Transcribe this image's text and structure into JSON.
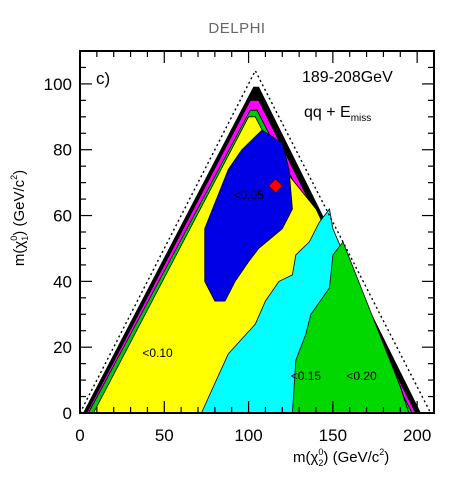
{
  "header": {
    "label": "DELPHI"
  },
  "chart_data": {
    "type": "contour",
    "panel_label": "c)",
    "energy_label": "189-208GeV",
    "channel_label": "qq + E",
    "channel_sub": "miss",
    "xlabel_main": "m(χ",
    "xlabel_sub": "2",
    "xlabel_sup": "0",
    "xlabel_units": ") (GeV/c",
    "xlabel_pow": "2",
    "xlabel_close": ")",
    "ylabel_main": "m(χ",
    "ylabel_sub": "1",
    "ylabel_sup": "0",
    "ylabel_units": ") (GeV/c",
    "ylabel_pow": "2",
    "ylabel_close": ")",
    "xlim": [
      0,
      210
    ],
    "ylim": [
      0,
      110
    ],
    "x_ticks": [
      0,
      50,
      100,
      150,
      200
    ],
    "y_ticks": [
      0,
      20,
      40,
      60,
      80,
      100
    ],
    "x_minor_step": 10,
    "y_minor_step": 5,
    "kinematic_boundary": [
      [
        0,
        0
      ],
      [
        104,
        104
      ],
      [
        208,
        0
      ]
    ],
    "colors": {
      "outer": "#000000",
      "edge_band": "#ff00ff",
      "band_green_outer": "#00c800",
      "region_010": "#ffff00",
      "region_015": "#00ffff",
      "region_020": "#00d800",
      "region_005": "#0000e6",
      "marker": "#ff0000"
    },
    "regions": [
      {
        "name": "outer",
        "color": "outer",
        "points": [
          [
            2,
            0
          ],
          [
            103,
            99
          ],
          [
            106,
            99
          ],
          [
            202,
            0
          ]
        ]
      },
      {
        "name": "edge-band",
        "color": "edge_band",
        "points": [
          [
            4,
            0
          ],
          [
            101,
            95
          ],
          [
            106,
            95
          ],
          [
            199,
            0
          ]
        ]
      },
      {
        "name": "green-band",
        "color": "band_green_outer",
        "points": [
          [
            5,
            0
          ],
          [
            101,
            92
          ],
          [
            105,
            92
          ],
          [
            197,
            0
          ]
        ]
      },
      {
        "name": "yellow-region",
        "color": "region_010",
        "points": [
          [
            8,
            0
          ],
          [
            100,
            90
          ],
          [
            104,
            90
          ],
          [
            118,
            76
          ],
          [
            140,
            62
          ],
          [
            190,
            8
          ],
          [
            195,
            0
          ]
        ]
      },
      {
        "name": "cyan-region",
        "color": "region_015",
        "points": [
          [
            72,
            0
          ],
          [
            88,
            18
          ],
          [
            104,
            27
          ],
          [
            110,
            34
          ],
          [
            118,
            40
          ],
          [
            126,
            42
          ],
          [
            128,
            48
          ],
          [
            136,
            52
          ],
          [
            142,
            58
          ],
          [
            148,
            62
          ],
          [
            150,
            56
          ],
          [
            190,
            8
          ],
          [
            195,
            0
          ]
        ]
      },
      {
        "name": "green-region",
        "color": "region_020",
        "points": [
          [
            126,
            0
          ],
          [
            128,
            16
          ],
          [
            134,
            24
          ],
          [
            137,
            30
          ],
          [
            148,
            38
          ],
          [
            150,
            48
          ],
          [
            156,
            52
          ],
          [
            190,
            8
          ],
          [
            195,
            0
          ]
        ]
      },
      {
        "name": "blue-region",
        "color": "region_005",
        "points": [
          [
            74,
            40
          ],
          [
            74,
            56
          ],
          [
            88,
            74
          ],
          [
            96,
            80
          ],
          [
            108,
            86
          ],
          [
            120,
            82
          ],
          [
            124,
            74
          ],
          [
            126,
            62
          ],
          [
            120,
            56
          ],
          [
            106,
            50
          ],
          [
            100,
            46
          ],
          [
            92,
            40
          ],
          [
            86,
            34
          ],
          [
            80,
            34
          ]
        ]
      }
    ],
    "contour_labels": [
      {
        "text": "<0.05",
        "x": 91,
        "y": 65
      },
      {
        "text": "<0.10",
        "x": 37,
        "y": 17
      },
      {
        "text": "<0.15",
        "x": 125,
        "y": 10
      },
      {
        "text": "<0.20",
        "x": 158,
        "y": 10
      }
    ],
    "best_point": {
      "x": 116,
      "y": 69
    }
  }
}
